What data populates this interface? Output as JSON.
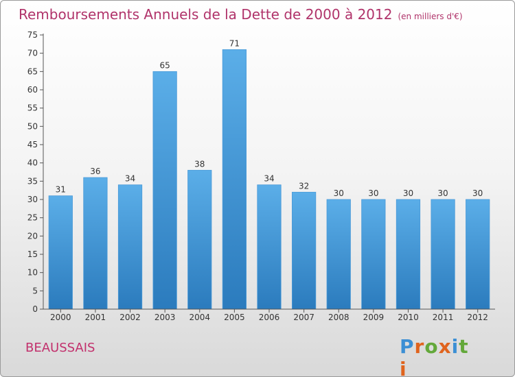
{
  "chart_data": {
    "type": "bar",
    "title": "Remboursements Annuels de la Dette de 2000 à 2012",
    "subtitle": "(en milliers d'€)",
    "categories": [
      "2000",
      "2001",
      "2002",
      "2003",
      "2004",
      "2005",
      "2006",
      "2007",
      "2008",
      "2009",
      "2010",
      "2011",
      "2012"
    ],
    "values": [
      31,
      36,
      34,
      65,
      38,
      71,
      34,
      32,
      30,
      30,
      30,
      30,
      30
    ],
    "ylim": [
      0,
      75
    ],
    "yticks": [
      0,
      5,
      10,
      15,
      20,
      25,
      30,
      35,
      40,
      45,
      50,
      55,
      60,
      65,
      70,
      75
    ],
    "grid": false,
    "legend": "none",
    "bar_color_top": "#5baee8",
    "bar_color_bottom": "#2b7bbd"
  },
  "footer": {
    "commune": "BEAUSSAIS",
    "logo_text": "Proxiti"
  },
  "colors": {
    "title": "#b0336a",
    "logo": [
      "#3c8fd4",
      "#e0641e",
      "#63a83a",
      "#e0641e",
      "#3c8fd4",
      "#63a83a",
      "#e0641e"
    ]
  }
}
